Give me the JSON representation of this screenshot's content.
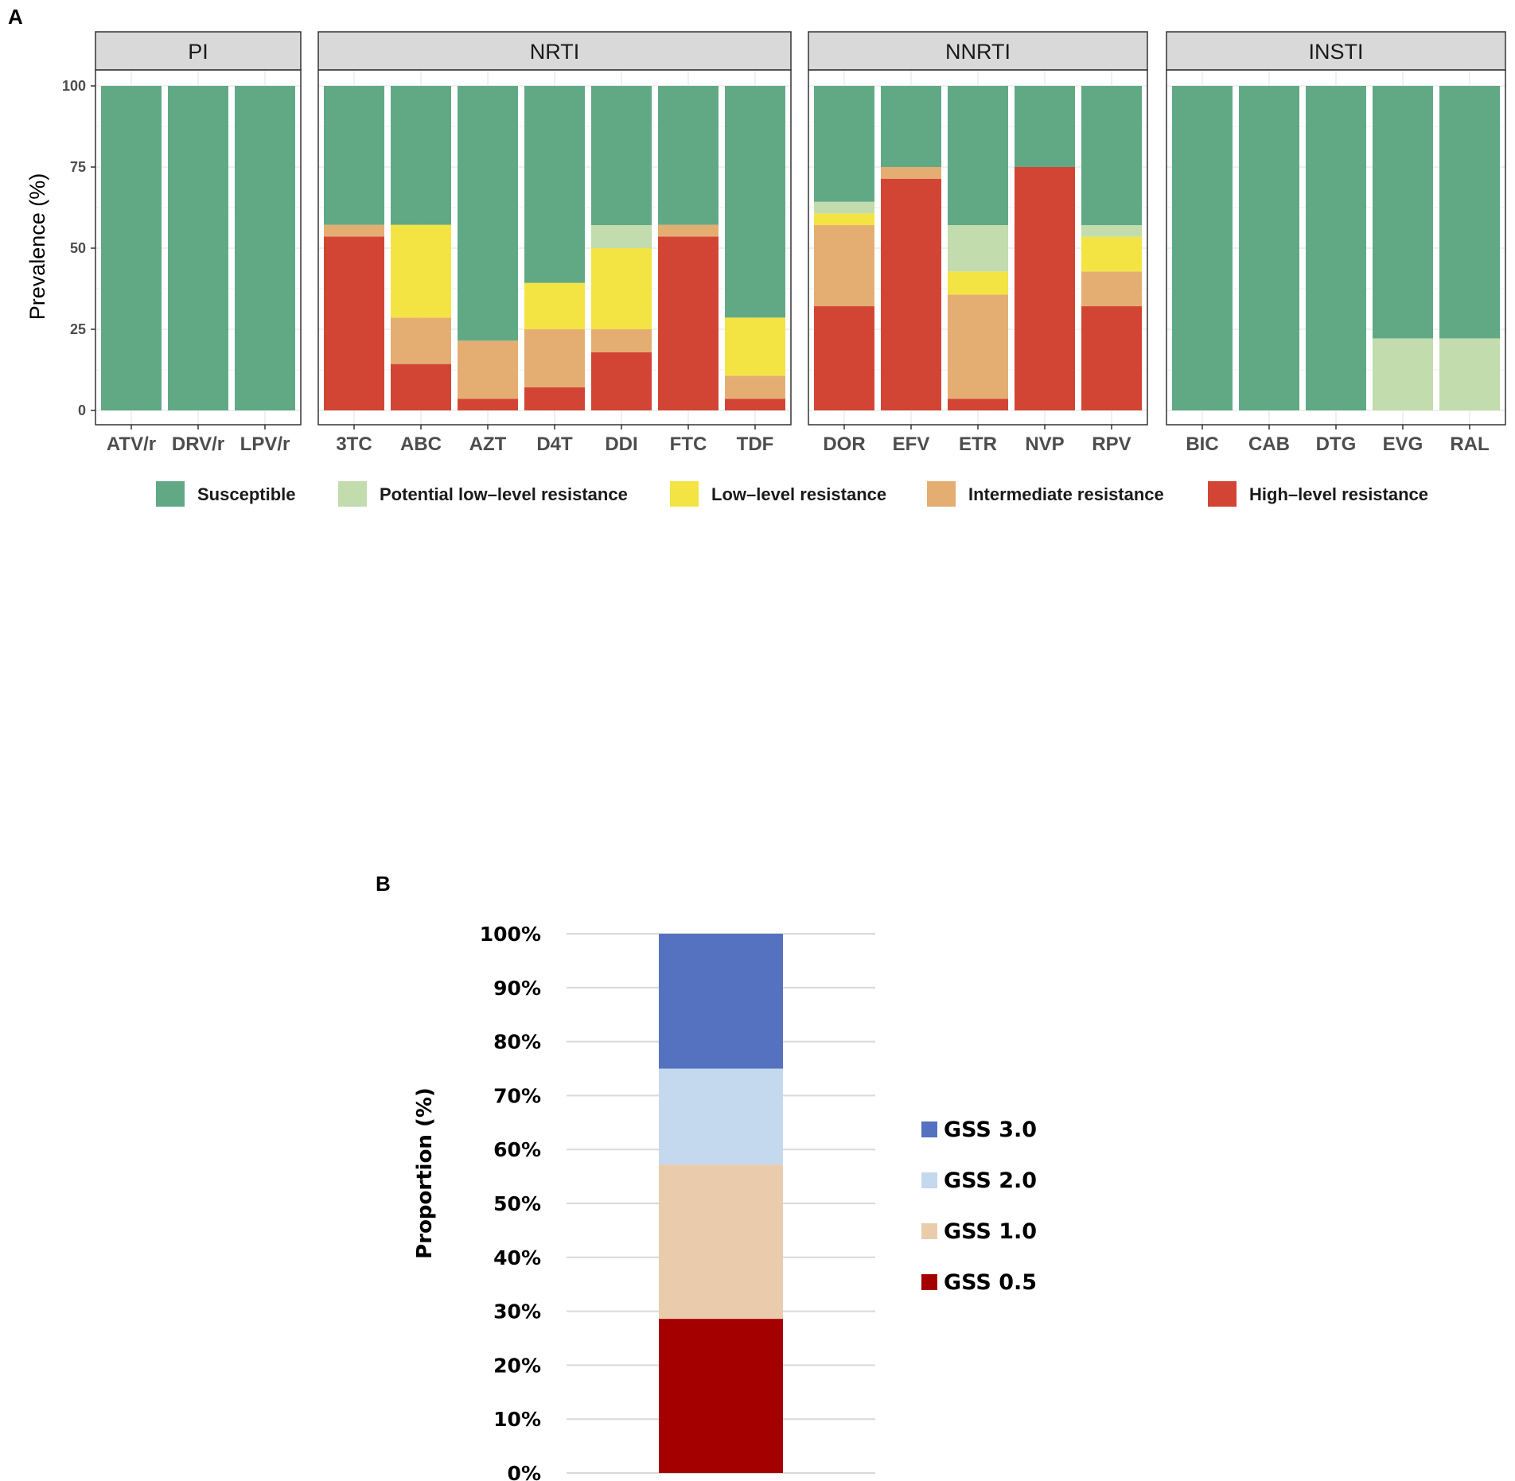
{
  "chart_data": [
    {
      "type": "bar",
      "stacked": true,
      "panel_label": "A",
      "ylabel": "Prevalence (%)",
      "xlabel": "",
      "ylim": [
        0,
        100
      ],
      "yticks": [
        0,
        25,
        50,
        75,
        100
      ],
      "grid": true,
      "legend_position": "bottom",
      "colors": {
        "Susceptible": "#61a985",
        "Potential low–level resistance": "#c2dcad",
        "Low–level resistance": "#f4e443",
        "Intermediate resistance": "#e4ae72",
        "High–level resistance": "#d24535"
      },
      "series_names": [
        "Susceptible",
        "Potential low–level resistance",
        "Low–level resistance",
        "Intermediate resistance",
        "High–level resistance"
      ],
      "facets": [
        {
          "name": "PI",
          "categories": [
            "ATV/r",
            "DRV/r",
            "LPV/r"
          ],
          "values": {
            "High–level resistance": [
              0,
              0,
              0
            ],
            "Intermediate resistance": [
              0,
              0,
              0
            ],
            "Low–level resistance": [
              0,
              0,
              0
            ],
            "Potential low–level resistance": [
              0,
              0,
              0
            ],
            "Susceptible": [
              100,
              100,
              100
            ]
          }
        },
        {
          "name": "NRTI",
          "categories": [
            "3TC",
            "ABC",
            "AZT",
            "D4T",
            "DDI",
            "FTC",
            "TDF"
          ],
          "values": {
            "High–level resistance": [
              53.6,
              14.3,
              3.6,
              7.1,
              17.9,
              53.6,
              3.6
            ],
            "Intermediate resistance": [
              3.6,
              14.3,
              17.9,
              17.9,
              7.1,
              3.6,
              7.1
            ],
            "Low–level resistance": [
              0,
              28.6,
              0,
              14.3,
              25.0,
              0,
              17.9
            ],
            "Potential low–level resistance": [
              0,
              0,
              0,
              0,
              7.1,
              0,
              0
            ],
            "Susceptible": [
              42.8,
              42.8,
              78.5,
              60.7,
              42.9,
              42.8,
              71.4
            ]
          }
        },
        {
          "name": "NNRTI",
          "categories": [
            "DOR",
            "EFV",
            "ETR",
            "NVP",
            "RPV"
          ],
          "values": {
            "High–level resistance": [
              32.1,
              71.4,
              3.6,
              75.0,
              32.1
            ],
            "Intermediate resistance": [
              25.0,
              3.6,
              32.1,
              0,
              10.7
            ],
            "Low–level resistance": [
              3.6,
              0,
              7.1,
              0,
              10.7
            ],
            "Potential low–level resistance": [
              3.6,
              0,
              14.3,
              0,
              3.6
            ],
            "Susceptible": [
              35.7,
              25.0,
              42.9,
              25.0,
              42.9
            ]
          }
        },
        {
          "name": "INSTI",
          "categories": [
            "BIC",
            "CAB",
            "DTG",
            "EVG",
            "RAL"
          ],
          "values": {
            "High–level resistance": [
              0,
              0,
              0,
              0,
              0
            ],
            "Intermediate resistance": [
              0,
              0,
              0,
              0,
              0
            ],
            "Low–level resistance": [
              0,
              0,
              0,
              0,
              0
            ],
            "Potential low–level resistance": [
              0,
              0,
              0,
              22.2,
              22.2
            ],
            "Susceptible": [
              100,
              100,
              100,
              77.8,
              77.8
            ]
          }
        }
      ]
    },
    {
      "type": "bar",
      "stacked": true,
      "panel_label": "B",
      "ylabel": "Proportion (%)",
      "xlabel": "",
      "ylim": [
        0,
        100
      ],
      "ytick_labels": [
        "0%",
        "10%",
        "20%",
        "30%",
        "40%",
        "50%",
        "60%",
        "70%",
        "80%",
        "90%",
        "100%"
      ],
      "grid": true,
      "legend_position": "right",
      "segments": [
        {
          "name": "GSS 0.5",
          "value": 28.6,
          "color": "#a50000"
        },
        {
          "name": "GSS 1.0",
          "value": 28.6,
          "color": "#eaccad"
        },
        {
          "name": "GSS 2.0",
          "value": 17.8,
          "color": "#c4d8ee"
        },
        {
          "name": "GSS 3.0",
          "value": 25.0,
          "color": "#5572c0"
        }
      ],
      "legend_order": [
        "GSS 3.0",
        "GSS 2.0",
        "GSS 1.0",
        "GSS 0.5"
      ]
    }
  ]
}
